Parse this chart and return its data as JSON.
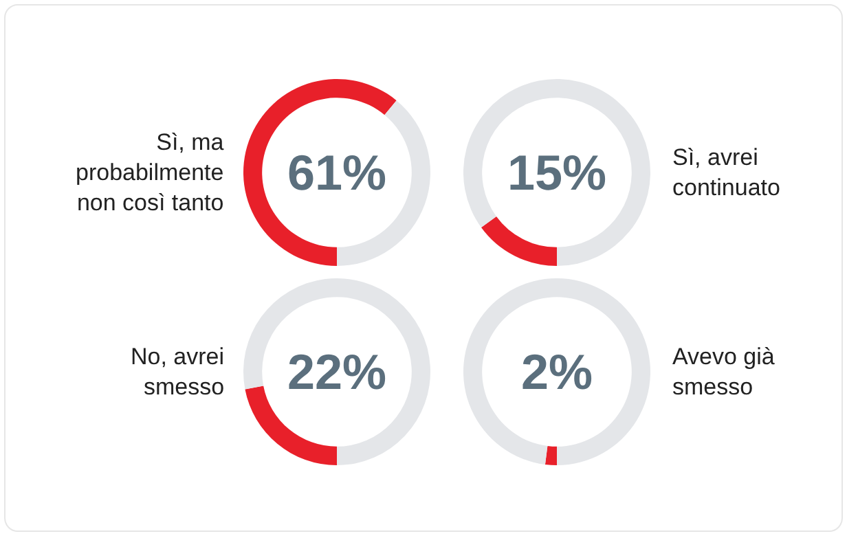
{
  "chart_data": [
    {
      "type": "donut",
      "title": "Sì, ma probabilmente non così tanto",
      "categories": [
        null,
        null
      ],
      "values": [
        61,
        39
      ],
      "colors": [
        "#e8202a",
        "#e4e6e9"
      ],
      "annotations": [
        "61%"
      ],
      "legend": false
    },
    {
      "type": "donut",
      "title": "Sì, avrei continuato",
      "categories": [
        null,
        null
      ],
      "values": [
        15,
        85
      ],
      "colors": [
        "#e8202a",
        "#e4e6e9"
      ],
      "annotations": [
        "15%"
      ],
      "legend": false
    },
    {
      "type": "donut",
      "title": "No, avrei smesso",
      "categories": [
        null,
        null
      ],
      "values": [
        22,
        78
      ],
      "colors": [
        "#e8202a",
        "#e4e6e9"
      ],
      "annotations": [
        "22%"
      ],
      "legend": false
    },
    {
      "type": "donut",
      "title": "Avevo già smesso",
      "categories": [
        null,
        null
      ],
      "values": [
        2,
        98
      ],
      "colors": [
        "#e8202a",
        "#e4e6e9"
      ],
      "annotations": [
        "2%"
      ],
      "legend": false
    }
  ]
}
